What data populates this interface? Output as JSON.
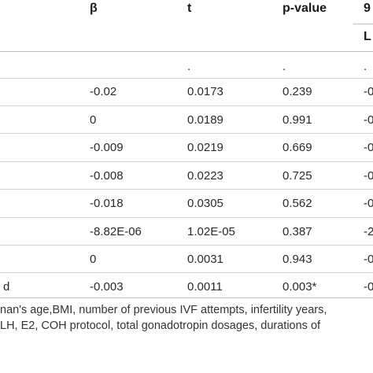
{
  "header": {
    "beta": "β",
    "t": "t",
    "pvalue": "p-value",
    "ci_top": "9",
    "ci_sub": "L"
  },
  "rows": [
    {
      "label": "",
      "beta": "",
      "t": ".",
      "p": ".",
      "ci": "."
    },
    {
      "label": "",
      "beta": "-0.02",
      "t": "0.0173",
      "p": "0.239",
      "ci": "-0"
    },
    {
      "label": "",
      "beta": "0",
      "t": "0.0189",
      "p": "0.991",
      "ci": "-0"
    },
    {
      "label": "",
      "beta": "-0.009",
      "t": "0.0219",
      "p": "0.669",
      "ci": "-0"
    },
    {
      "label": "",
      "beta": "-0.008",
      "t": "0.0223",
      "p": "0.725",
      "ci": "-0"
    },
    {
      "label": "",
      "beta": "-0.018",
      "t": "0.0305",
      "p": "0.562",
      "ci": "-0"
    },
    {
      "label": "",
      "beta": "-8.82E-06",
      "t": "1.02E-05",
      "p": "0.387",
      "ci": "-2"
    },
    {
      "label": "",
      "beta": "0",
      "t": "0.0031",
      "p": "0.943",
      "ci": "-0"
    },
    {
      "label": "d",
      "beta": "-0.003",
      "t": "0.0011",
      "p": "0.003*",
      "ci": "-0"
    }
  ],
  "footnote": {
    "line1": "nan's age,BMI, number of previous IVF attempts, infertility years,",
    "line2": " LH, E2, COH protocol, total gonadotropin dosages, durations of"
  }
}
